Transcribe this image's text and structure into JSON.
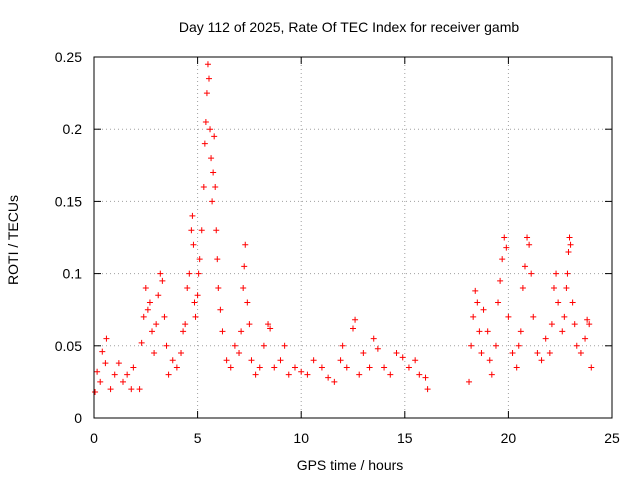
{
  "chart_data": {
    "type": "scatter",
    "title": "Day 112 of 2025, Rate Of TEC Index for receiver gamb",
    "xlabel": "GPS time / hours",
    "ylabel": "ROTI / TECUs",
    "xlim": [
      0,
      25
    ],
    "ylim": [
      0,
      0.25
    ],
    "xticks": [
      0,
      5,
      10,
      15,
      20,
      25
    ],
    "xtick_labels": [
      "0",
      "5",
      "10",
      "15",
      "20",
      "25"
    ],
    "yticks": [
      0,
      0.05,
      0.1,
      0.15,
      0.2,
      0.25
    ],
    "ytick_labels": [
      "0",
      "0.05",
      "0.1",
      "0.15",
      "0.2",
      "0.25"
    ],
    "grid": true,
    "marker": "plus",
    "color": "#ff0000",
    "series": [
      {
        "name": "ROTI",
        "points": [
          [
            0.05,
            0.018
          ],
          [
            0.15,
            0.032
          ],
          [
            0.3,
            0.025
          ],
          [
            0.4,
            0.046
          ],
          [
            0.55,
            0.038
          ],
          [
            0.6,
            0.055
          ],
          [
            0.8,
            0.02
          ],
          [
            1.0,
            0.03
          ],
          [
            1.2,
            0.038
          ],
          [
            1.4,
            0.025
          ],
          [
            1.6,
            0.03
          ],
          [
            1.8,
            0.02
          ],
          [
            1.9,
            0.035
          ],
          [
            2.2,
            0.02
          ],
          [
            2.3,
            0.052
          ],
          [
            2.4,
            0.07
          ],
          [
            2.5,
            0.09
          ],
          [
            2.6,
            0.075
          ],
          [
            2.7,
            0.08
          ],
          [
            2.8,
            0.06
          ],
          [
            2.9,
            0.045
          ],
          [
            3.0,
            0.065
          ],
          [
            3.1,
            0.085
          ],
          [
            3.2,
            0.1
          ],
          [
            3.3,
            0.095
          ],
          [
            3.4,
            0.07
          ],
          [
            3.5,
            0.05
          ],
          [
            3.6,
            0.03
          ],
          [
            3.8,
            0.04
          ],
          [
            4.0,
            0.035
          ],
          [
            4.2,
            0.045
          ],
          [
            4.3,
            0.06
          ],
          [
            4.4,
            0.065
          ],
          [
            4.5,
            0.09
          ],
          [
            4.6,
            0.1
          ],
          [
            4.7,
            0.13
          ],
          [
            4.75,
            0.14
          ],
          [
            4.8,
            0.12
          ],
          [
            4.85,
            0.08
          ],
          [
            4.9,
            0.07
          ],
          [
            5.0,
            0.085
          ],
          [
            5.05,
            0.1
          ],
          [
            5.1,
            0.11
          ],
          [
            5.2,
            0.13
          ],
          [
            5.3,
            0.16
          ],
          [
            5.35,
            0.19
          ],
          [
            5.4,
            0.205
          ],
          [
            5.45,
            0.225
          ],
          [
            5.5,
            0.245
          ],
          [
            5.55,
            0.235
          ],
          [
            5.6,
            0.2
          ],
          [
            5.65,
            0.18
          ],
          [
            5.7,
            0.15
          ],
          [
            5.75,
            0.17
          ],
          [
            5.8,
            0.195
          ],
          [
            5.85,
            0.16
          ],
          [
            5.9,
            0.13
          ],
          [
            5.95,
            0.11
          ],
          [
            6.0,
            0.09
          ],
          [
            6.1,
            0.075
          ],
          [
            6.2,
            0.06
          ],
          [
            6.4,
            0.04
          ],
          [
            6.6,
            0.035
          ],
          [
            6.8,
            0.05
          ],
          [
            7.0,
            0.045
          ],
          [
            7.1,
            0.06
          ],
          [
            7.2,
            0.09
          ],
          [
            7.25,
            0.105
          ],
          [
            7.3,
            0.12
          ],
          [
            7.4,
            0.08
          ],
          [
            7.5,
            0.065
          ],
          [
            7.6,
            0.04
          ],
          [
            7.8,
            0.03
          ],
          [
            8.0,
            0.035
          ],
          [
            8.2,
            0.05
          ],
          [
            8.4,
            0.065
          ],
          [
            8.5,
            0.062
          ],
          [
            8.7,
            0.035
          ],
          [
            9.0,
            0.04
          ],
          [
            9.2,
            0.05
          ],
          [
            9.4,
            0.03
          ],
          [
            9.7,
            0.035
          ],
          [
            10.0,
            0.032
          ],
          [
            10.3,
            0.03
          ],
          [
            10.6,
            0.04
          ],
          [
            11.0,
            0.035
          ],
          [
            11.3,
            0.028
          ],
          [
            11.6,
            0.025
          ],
          [
            11.9,
            0.04
          ],
          [
            12.0,
            0.05
          ],
          [
            12.2,
            0.035
          ],
          [
            12.5,
            0.062
          ],
          [
            12.6,
            0.068
          ],
          [
            12.8,
            0.03
          ],
          [
            13.0,
            0.045
          ],
          [
            13.3,
            0.035
          ],
          [
            13.5,
            0.055
          ],
          [
            13.7,
            0.048
          ],
          [
            14.0,
            0.035
          ],
          [
            14.3,
            0.03
          ],
          [
            14.6,
            0.045
          ],
          [
            14.9,
            0.042
          ],
          [
            15.2,
            0.035
          ],
          [
            15.5,
            0.04
          ],
          [
            15.7,
            0.03
          ],
          [
            16.0,
            0.028
          ],
          [
            16.1,
            0.02
          ],
          [
            18.1,
            0.025
          ],
          [
            18.2,
            0.05
          ],
          [
            18.3,
            0.07
          ],
          [
            18.4,
            0.088
          ],
          [
            18.5,
            0.08
          ],
          [
            18.6,
            0.06
          ],
          [
            18.7,
            0.045
          ],
          [
            18.8,
            0.075
          ],
          [
            19.0,
            0.06
          ],
          [
            19.1,
            0.04
          ],
          [
            19.2,
            0.03
          ],
          [
            19.4,
            0.05
          ],
          [
            19.5,
            0.08
          ],
          [
            19.6,
            0.095
          ],
          [
            19.7,
            0.11
          ],
          [
            19.8,
            0.125
          ],
          [
            19.9,
            0.118
          ],
          [
            20.0,
            0.07
          ],
          [
            20.2,
            0.045
          ],
          [
            20.4,
            0.035
          ],
          [
            20.5,
            0.05
          ],
          [
            20.6,
            0.06
          ],
          [
            20.7,
            0.09
          ],
          [
            20.8,
            0.105
          ],
          [
            20.9,
            0.125
          ],
          [
            21.0,
            0.12
          ],
          [
            21.1,
            0.1
          ],
          [
            21.2,
            0.07
          ],
          [
            21.4,
            0.045
          ],
          [
            21.6,
            0.04
          ],
          [
            21.8,
            0.055
          ],
          [
            22.0,
            0.045
          ],
          [
            22.1,
            0.065
          ],
          [
            22.2,
            0.09
          ],
          [
            22.3,
            0.1
          ],
          [
            22.4,
            0.08
          ],
          [
            22.6,
            0.06
          ],
          [
            22.7,
            0.07
          ],
          [
            22.8,
            0.09
          ],
          [
            22.85,
            0.1
          ],
          [
            22.9,
            0.115
          ],
          [
            22.95,
            0.125
          ],
          [
            23.0,
            0.12
          ],
          [
            23.1,
            0.08
          ],
          [
            23.2,
            0.065
          ],
          [
            23.3,
            0.05
          ],
          [
            23.5,
            0.045
          ],
          [
            23.7,
            0.055
          ],
          [
            23.8,
            0.068
          ],
          [
            23.9,
            0.065
          ],
          [
            24.0,
            0.035
          ]
        ]
      }
    ]
  }
}
